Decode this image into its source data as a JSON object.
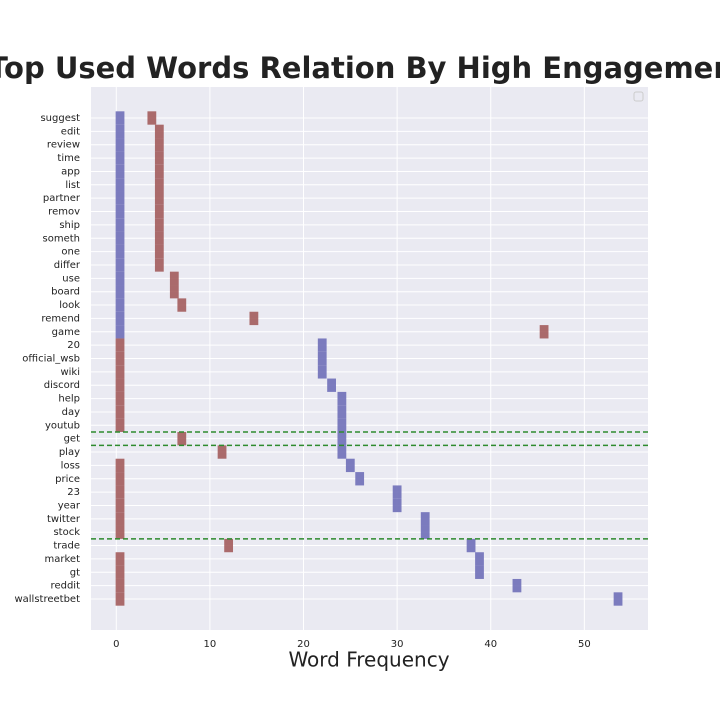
{
  "chart_data": {
    "type": "bar",
    "title": "Top Used Words Relation By High Engagement",
    "x_label": "Word Frequency",
    "categories": [
      "suggest",
      "edit",
      "review",
      "time",
      "app",
      "list",
      "partner",
      "remov",
      "ship",
      "someth",
      "one",
      "differ",
      "use",
      "board",
      "look",
      "remend",
      "game",
      "20",
      "official_wsb",
      "wiki",
      "discord",
      "help",
      "day",
      "youtub",
      "get",
      "play",
      "loss",
      "price",
      "23",
      "year",
      "twitter",
      "stock",
      "trade",
      "market",
      "gt",
      "reddit",
      "wallstreetbet"
    ],
    "series": [
      {
        "color": "#6f6fb8",
        "values": [
          0.4,
          0.4,
          0.4,
          0.4,
          0.4,
          0.4,
          0.4,
          0.4,
          0.4,
          0.4,
          0.4,
          0.4,
          0.4,
          0.4,
          0.4,
          0.4,
          0.4,
          22,
          22,
          22,
          23,
          24.1,
          24.1,
          24.1,
          24.1,
          24.1,
          25,
          26,
          30,
          30,
          33,
          33,
          37.9,
          38.8,
          38.8,
          42.8,
          53.6
        ]
      },
      {
        "color": "#a35c5c",
        "values": [
          3.8,
          4.6,
          4.6,
          4.6,
          4.6,
          4.6,
          4.6,
          4.6,
          4.6,
          4.6,
          4.6,
          4.6,
          6.2,
          6.2,
          7,
          14.7,
          45.7,
          0.4,
          0.4,
          0.4,
          0.4,
          0.4,
          0.4,
          0.4,
          7,
          11.3,
          0.4,
          0.4,
          0.4,
          0.4,
          0.4,
          0.4,
          12,
          0.4,
          0.4,
          0.4,
          0.4
        ]
      }
    ],
    "reference_lines": [
      "get",
      "play",
      "trade"
    ],
    "reference_color": "#2e8b2e",
    "xlim": [
      -2.7,
      56.8
    ],
    "xticks": [
      0,
      10,
      20,
      30,
      40,
      50
    ],
    "grid": true
  }
}
